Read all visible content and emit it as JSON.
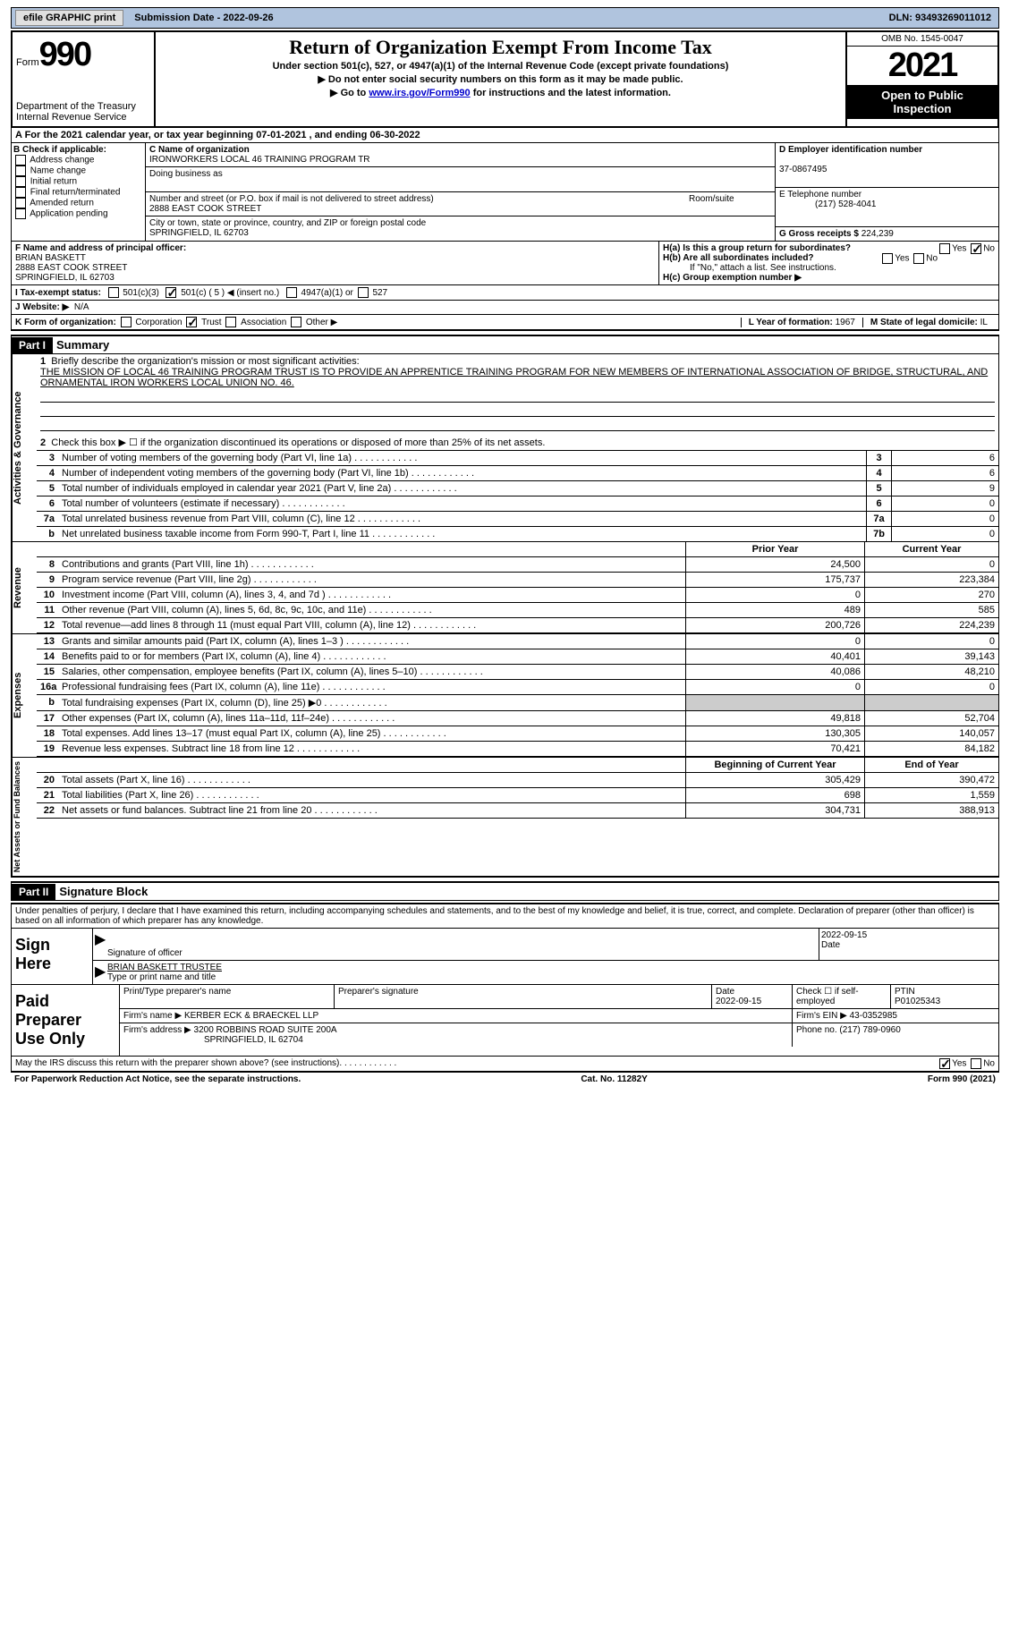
{
  "topbar": {
    "efile": "efile GRAPHIC print",
    "subdate_lbl": "Submission Date - ",
    "subdate": "2022-09-26",
    "dln_lbl": "DLN: ",
    "dln": "93493269011012"
  },
  "header": {
    "form_word": "Form",
    "form_no": "990",
    "dept": "Department of the Treasury",
    "irs": "Internal Revenue Service",
    "title": "Return of Organization Exempt From Income Tax",
    "sub1": "Under section 501(c), 527, or 4947(a)(1) of the Internal Revenue Code (except private foundations)",
    "sub2": "▶ Do not enter social security numbers on this form as it may be made public.",
    "sub3_pre": "▶ Go to ",
    "sub3_link": "www.irs.gov/Form990",
    "sub3_post": " for instructions and the latest information.",
    "omb": "OMB No. 1545-0047",
    "year": "2021",
    "open": "Open to Public Inspection"
  },
  "A": {
    "text": "A For the 2021 calendar year, or tax year beginning 07-01-2021    , and ending 06-30-2022"
  },
  "B": {
    "title": "B Check if applicable:",
    "items": [
      "Address change",
      "Name change",
      "Initial return",
      "Final return/terminated",
      "Amended return",
      "Application pending"
    ]
  },
  "C": {
    "lbl": "C Name of organization",
    "name": "IRONWORKERS LOCAL 46 TRAINING PROGRAM TR",
    "dba": "Doing business as",
    "addr_lbl": "Number and street (or P.O. box if mail is not delivered to street address)",
    "room": "Room/suite",
    "addr": "2888 EAST COOK STREET",
    "city_lbl": "City or town, state or province, country, and ZIP or foreign postal code",
    "city": "SPRINGFIELD, IL  62703"
  },
  "D": {
    "lbl": "D Employer identification number",
    "val": "37-0867495"
  },
  "E": {
    "lbl": "E Telephone number",
    "val": "(217) 528-4041"
  },
  "G": {
    "lbl": "G Gross receipts $ ",
    "val": "224,239"
  },
  "F": {
    "lbl": "F  Name and address of principal officer:",
    "name": "BRIAN BASKETT",
    "addr": "2888 EAST COOK STREET",
    "city": "SPRINGFIELD, IL  62703"
  },
  "H": {
    "a": "H(a)  Is this a group return for subordinates?",
    "b": "H(b)  Are all subordinates included?",
    "bnote": "If \"No,\" attach a list. See instructions.",
    "c": "H(c)  Group exemption number ▶",
    "yes": "Yes",
    "no": "No",
    "ha_no_checked": true
  },
  "I": {
    "lbl": "I   Tax-exempt status:",
    "c3": "501(c)(3)",
    "c": "501(c) ( 5 ) ◀ (insert no.)",
    "c_checked": true,
    "a1": "4947(a)(1) or",
    "s527": "527"
  },
  "J": {
    "lbl": "J   Website: ▶",
    "val": "N/A"
  },
  "K": {
    "lbl": "K Form of organization:",
    "corp": "Corporation",
    "trust": "Trust",
    "trust_checked": true,
    "assoc": "Association",
    "other": "Other ▶"
  },
  "L": {
    "lbl": "L Year of formation: ",
    "val": "1967"
  },
  "M": {
    "lbl": "M State of legal domicile: ",
    "val": "IL"
  },
  "part1": {
    "bar": "Part I",
    "title": "Summary",
    "l1": "Briefly describe the organization's mission or most significant activities:",
    "mission": "THE MISSION OF LOCAL 46 TRAINING PROGRAM TRUST IS TO PROVIDE AN APPRENTICE TRAINING PROGRAM FOR NEW MEMBERS OF INTERNATIONAL ASSOCIATION OF BRIDGE, STRUCTURAL, AND ORNAMENTAL IRON WORKERS LOCAL UNION NO. 46.",
    "l2": "Check this box ▶ ☐ if the organization discontinued its operations or disposed of more than 25% of its net assets.",
    "gov": "Activities & Governance",
    "lines_gov": [
      {
        "n": "3",
        "d": "Number of voting members of the governing body (Part VI, line 1a)",
        "box": "3",
        "v": "6"
      },
      {
        "n": "4",
        "d": "Number of independent voting members of the governing body (Part VI, line 1b)",
        "box": "4",
        "v": "6"
      },
      {
        "n": "5",
        "d": "Total number of individuals employed in calendar year 2021 (Part V, line 2a)",
        "box": "5",
        "v": "9"
      },
      {
        "n": "6",
        "d": "Total number of volunteers (estimate if necessary)",
        "box": "6",
        "v": "0"
      },
      {
        "n": "7a",
        "d": "Total unrelated business revenue from Part VIII, column (C), line 12",
        "box": "7a",
        "v": "0"
      },
      {
        "n": "b",
        "d": "Net unrelated business taxable income from Form 990-T, Part I, line 11",
        "box": "7b",
        "v": "0"
      }
    ],
    "prior": "Prior Year",
    "current": "Current Year",
    "rev": "Revenue",
    "lines_rev": [
      {
        "n": "8",
        "d": "Contributions and grants (Part VIII, line 1h)",
        "p": "24,500",
        "c": "0"
      },
      {
        "n": "9",
        "d": "Program service revenue (Part VIII, line 2g)",
        "p": "175,737",
        "c": "223,384"
      },
      {
        "n": "10",
        "d": "Investment income (Part VIII, column (A), lines 3, 4, and 7d )",
        "p": "0",
        "c": "270"
      },
      {
        "n": "11",
        "d": "Other revenue (Part VIII, column (A), lines 5, 6d, 8c, 9c, 10c, and 11e)",
        "p": "489",
        "c": "585"
      },
      {
        "n": "12",
        "d": "Total revenue—add lines 8 through 11 (must equal Part VIII, column (A), line 12)",
        "p": "200,726",
        "c": "224,239"
      }
    ],
    "exp": "Expenses",
    "lines_exp": [
      {
        "n": "13",
        "d": "Grants and similar amounts paid (Part IX, column (A), lines 1–3 )",
        "p": "0",
        "c": "0"
      },
      {
        "n": "14",
        "d": "Benefits paid to or for members (Part IX, column (A), line 4)",
        "p": "40,401",
        "c": "39,143"
      },
      {
        "n": "15",
        "d": "Salaries, other compensation, employee benefits (Part IX, column (A), lines 5–10)",
        "p": "40,086",
        "c": "48,210"
      },
      {
        "n": "16a",
        "d": "Professional fundraising fees (Part IX, column (A), line 11e)",
        "p": "0",
        "c": "0"
      },
      {
        "n": "b",
        "d": "Total fundraising expenses (Part IX, column (D), line 25) ▶0",
        "p": "",
        "c": "",
        "grey": true
      },
      {
        "n": "17",
        "d": "Other expenses (Part IX, column (A), lines 11a–11d, 11f–24e)",
        "p": "49,818",
        "c": "52,704"
      },
      {
        "n": "18",
        "d": "Total expenses. Add lines 13–17 (must equal Part IX, column (A), line 25)",
        "p": "130,305",
        "c": "140,057"
      },
      {
        "n": "19",
        "d": "Revenue less expenses. Subtract line 18 from line 12",
        "p": "70,421",
        "c": "84,182"
      }
    ],
    "net": "Net Assets or Fund Balances",
    "begin": "Beginning of Current Year",
    "end": "End of Year",
    "lines_net": [
      {
        "n": "20",
        "d": "Total assets (Part X, line 16)",
        "p": "305,429",
        "c": "390,472"
      },
      {
        "n": "21",
        "d": "Total liabilities (Part X, line 26)",
        "p": "698",
        "c": "1,559"
      },
      {
        "n": "22",
        "d": "Net assets or fund balances. Subtract line 21 from line 20",
        "p": "304,731",
        "c": "388,913"
      }
    ]
  },
  "part2": {
    "bar": "Part II",
    "title": "Signature Block",
    "decl": "Under penalties of perjury, I declare that I have examined this return, including accompanying schedules and statements, and to the best of my knowledge and belief, it is true, correct, and complete. Declaration of preparer (other than officer) is based on all information of which preparer has any knowledge.",
    "sign": "Sign Here",
    "sig_lbl": "Signature of officer",
    "date": "2022-09-15",
    "name": "BRIAN BASKETT  TRUSTEE",
    "name_lbl": "Type or print name and title",
    "paid": "Paid Preparer Use Only",
    "p_name_lbl": "Print/Type preparer's name",
    "p_sig_lbl": "Preparer's signature",
    "p_date_lbl": "Date",
    "p_date": "2022-09-15",
    "p_check": "Check ☐ if self-employed",
    "ptin_lbl": "PTIN",
    "ptin": "P01025343",
    "firm_name_lbl": "Firm's name    ▶",
    "firm_name": "KERBER ECK & BRAECKEL LLP",
    "firm_ein_lbl": "Firm's EIN ▶ ",
    "firm_ein": "43-0352985",
    "firm_addr_lbl": "Firm's address ▶",
    "firm_addr": "3200 ROBBINS ROAD SUITE 200A",
    "firm_city": "SPRINGFIELD, IL  62704",
    "phone_lbl": "Phone no. ",
    "phone": "(217) 789-0960"
  },
  "footer": {
    "discuss": "May the IRS discuss this return with the preparer shown above? (see instructions)",
    "yes": "Yes",
    "no": "No",
    "yes_checked": true,
    "paperwork": "For Paperwork Reduction Act Notice, see the separate instructions.",
    "cat": "Cat. No. 11282Y",
    "form": "Form 990 (2021)"
  }
}
